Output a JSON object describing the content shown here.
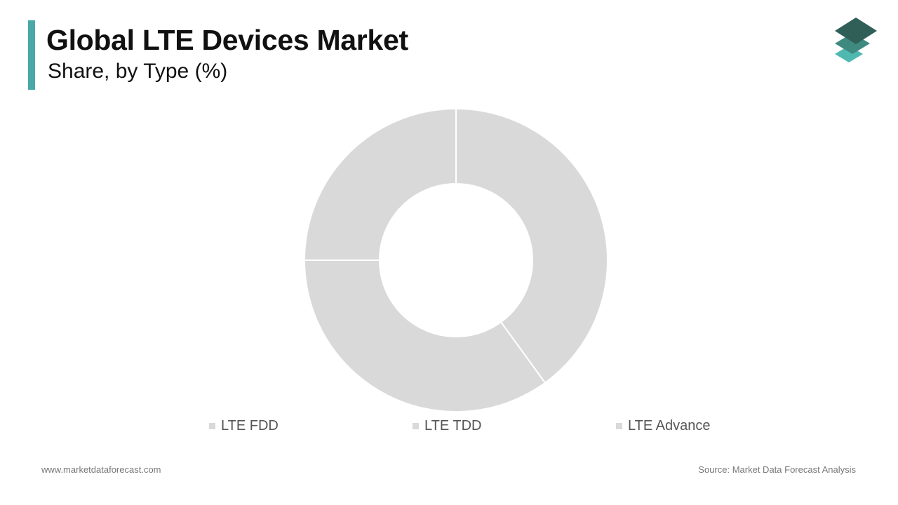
{
  "header": {
    "title": "Global LTE Devices Market",
    "subtitle": "Share, by Type (%)"
  },
  "logo": {
    "icon": "stacked-layers-logo-icon",
    "colors": [
      "#2f5f57",
      "#3f8a80",
      "#4fb8b0"
    ]
  },
  "colors": {
    "accent": "#4aa8a8",
    "slice": "#d9d9d9",
    "slice_border": "#ffffff",
    "legend_swatch": "#d9d9d9"
  },
  "chart_data": {
    "type": "pie",
    "variant": "donut",
    "title": "Global LTE Devices Market",
    "subtitle": "Share, by Type (%)",
    "categories": [
      "LTE FDD",
      "LTE TDD",
      "LTE Advance"
    ],
    "values": [
      40,
      35,
      25
    ],
    "start_angle_deg": 0,
    "direction": "clockwise",
    "legend": "bottom"
  },
  "footer": {
    "website": "www.marketdataforecast.com",
    "source": "Source: Market Data Forecast Analysis"
  }
}
